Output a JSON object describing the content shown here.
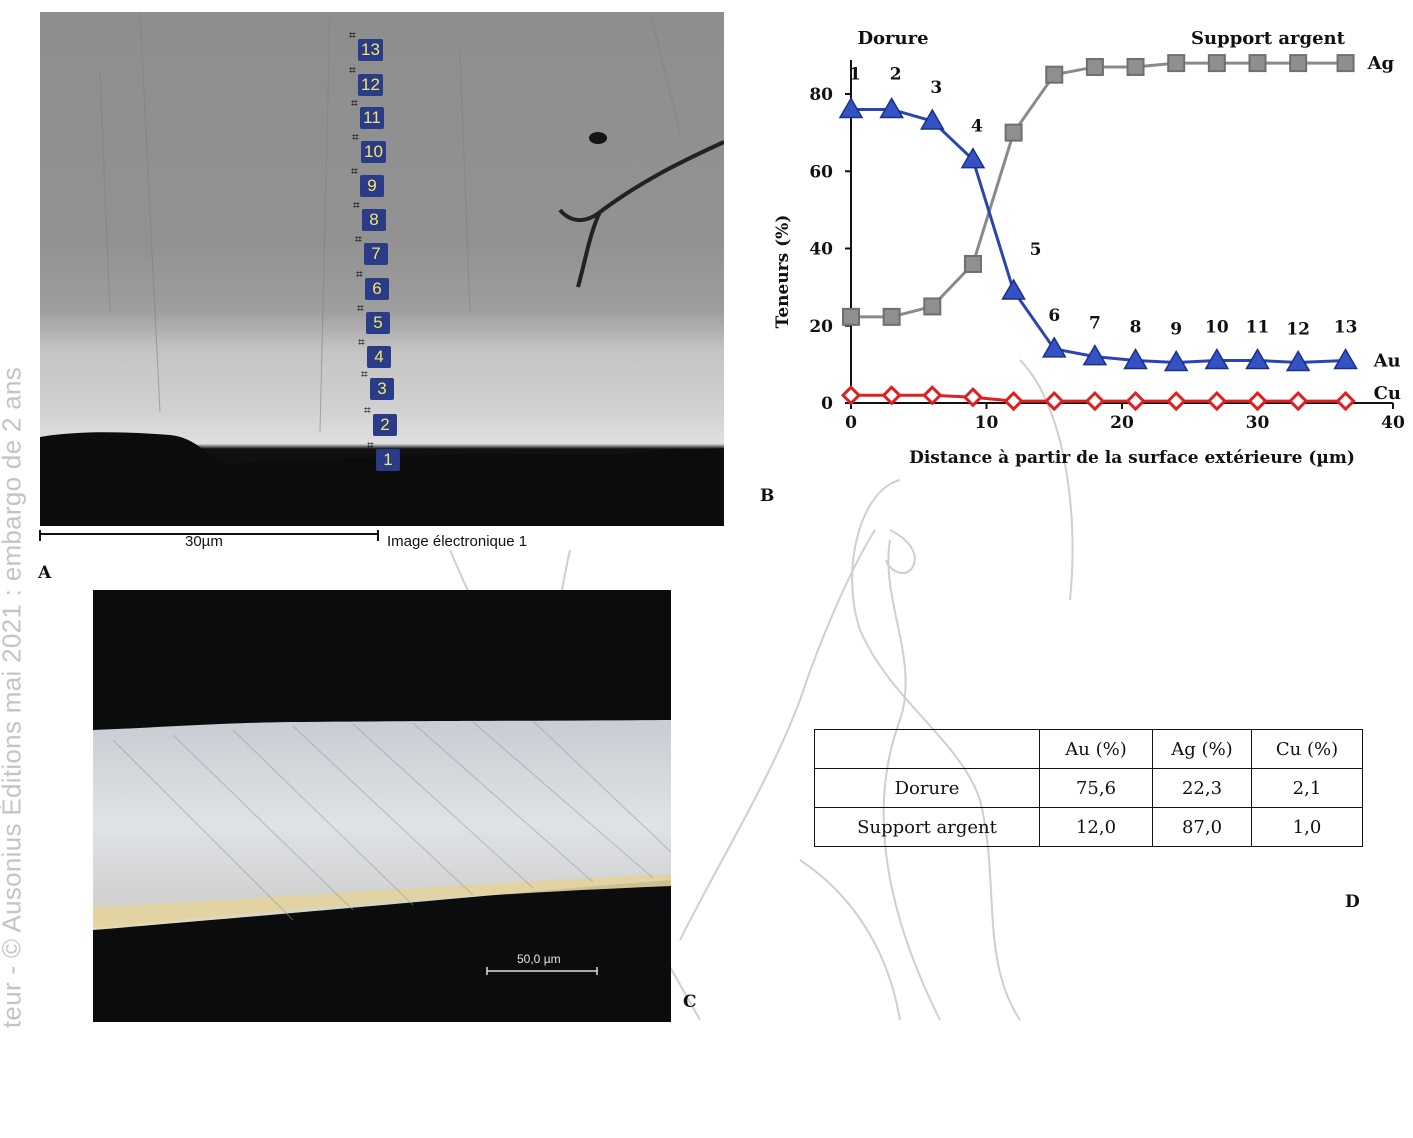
{
  "watermark": {
    "vertical_text": "teur - © Ausonius Éditions mai 2021 : embargo de 2 ans"
  },
  "panel_labels": {
    "a": "A",
    "b": "B",
    "c": "C",
    "d": "D"
  },
  "panel_a": {
    "scale_bar_label": "30µm",
    "caption": "Image électronique 1",
    "point_markers": [
      "1",
      "2",
      "3",
      "4",
      "5",
      "6",
      "7",
      "8",
      "9",
      "10",
      "11",
      "12",
      "13"
    ]
  },
  "panel_c": {
    "scale_bar_label": "50,0 µm"
  },
  "chart_data": {
    "type": "line",
    "xlabel": "Distance à partir de la surface extérieure (µm)",
    "ylabel": "Teneurs (%)",
    "xlim": [
      0,
      40
    ],
    "ylim": [
      0,
      90
    ],
    "x_ticks": [
      0,
      10,
      20,
      30,
      40
    ],
    "y_ticks": [
      0,
      20,
      40,
      60,
      80
    ],
    "region_labels": [
      "Dorure",
      "Support argent"
    ],
    "x": [
      0,
      3,
      6,
      9,
      12,
      15,
      18,
      21,
      24,
      27,
      30,
      33,
      36.5
    ],
    "point_labels": [
      "1",
      "2",
      "3",
      "4",
      "5",
      "6",
      "7",
      "8",
      "9",
      "10",
      "11",
      "12",
      "13"
    ],
    "series": [
      {
        "name": "Ag",
        "color": "#8a8a8a",
        "marker": "square",
        "values": [
          22.3,
          22.3,
          25,
          36,
          70,
          85,
          87,
          87,
          88,
          88,
          88,
          88,
          88
        ]
      },
      {
        "name": "Au",
        "color": "#2b45b0",
        "marker": "triangle",
        "values": [
          76,
          76,
          73,
          63,
          29,
          14,
          12,
          11,
          10.5,
          11,
          11,
          10.5,
          11
        ]
      },
      {
        "name": "Cu",
        "color": "#e02020",
        "marker": "diamond",
        "values": [
          2,
          2,
          2,
          1.5,
          0.5,
          0.5,
          0.5,
          0.5,
          0.5,
          0.5,
          0.5,
          0.5,
          0.5
        ]
      }
    ],
    "grid": false,
    "legend": "series labels at right end"
  },
  "table": {
    "headers": [
      "",
      "Au (%)",
      "Ag (%)",
      "Cu (%)"
    ],
    "rows": [
      [
        "Dorure",
        "75,6",
        "22,3",
        "2,1"
      ],
      [
        "Support argent",
        "12,0",
        "87,0",
        "1,0"
      ]
    ]
  }
}
